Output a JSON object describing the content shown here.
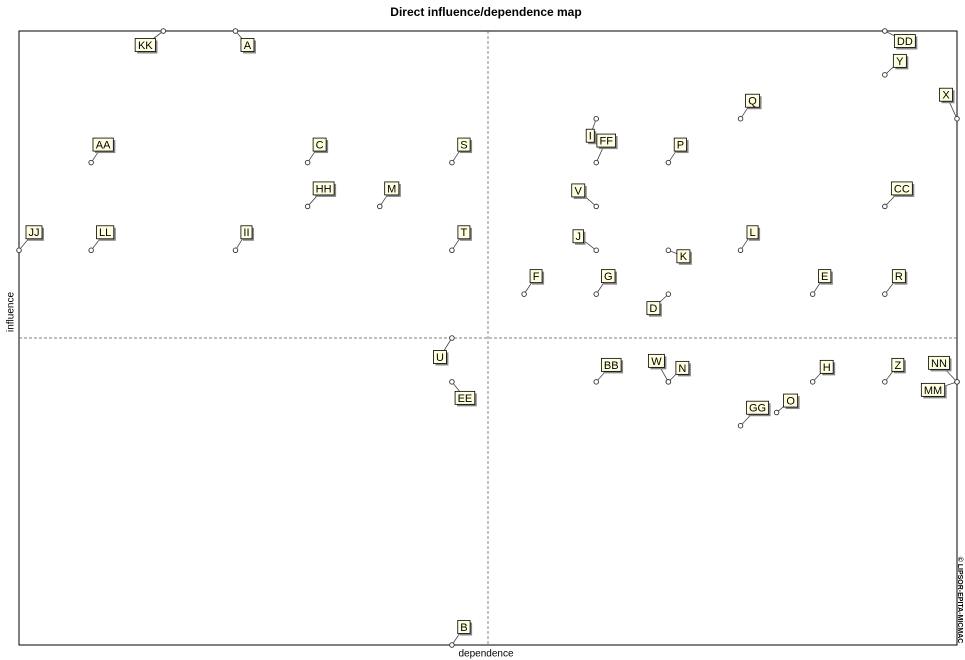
{
  "chart_data": {
    "type": "scatter",
    "title": "Direct influence/dependence map",
    "xlabel": "dependence",
    "ylabel": "influence",
    "credit": "© LIPSOR-EPITA-MICMAC",
    "xlim": [
      0,
      13
    ],
    "ylim": [
      0,
      14
    ],
    "labels": [
      "KK",
      "A",
      "DD",
      "Y",
      "X",
      "Q",
      "I",
      "FF",
      "P",
      "AA",
      "C",
      "S",
      "HH",
      "M",
      "V",
      "CC",
      "JJ",
      "LL",
      "II",
      "T",
      "J",
      "K",
      "L",
      "F",
      "G",
      "D",
      "E",
      "R",
      "U",
      "EE",
      "BB",
      "W",
      "N",
      "H",
      "O",
      "Z",
      "NN",
      "MM",
      "GG",
      "B"
    ],
    "x": [
      2,
      3,
      12,
      12,
      13,
      10,
      8,
      8,
      9,
      1,
      4,
      6,
      4,
      5,
      8,
      12,
      0,
      1,
      3,
      6,
      8,
      9,
      10,
      7,
      8,
      9,
      11,
      12,
      6,
      6,
      8,
      9,
      9,
      11,
      10.5,
      12,
      13,
      13,
      10,
      6
    ],
    "values": [
      14,
      14,
      14,
      13,
      12,
      12,
      12,
      11,
      11,
      11,
      11,
      11,
      10,
      10,
      10,
      10,
      9,
      9,
      9,
      9,
      9,
      9,
      9,
      8,
      8,
      8,
      8,
      8,
      7,
      6,
      6,
      6,
      6,
      6,
      5.3,
      6,
      6,
      6,
      5,
      0
    ]
  }
}
